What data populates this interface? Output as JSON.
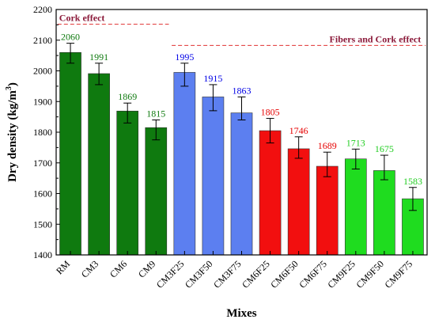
{
  "chart_data": {
    "type": "bar",
    "xlabel": "Mixes",
    "ylabel": "Dry density (kg/m",
    "ylabel_superscript": "3",
    "ylabel_close": ")",
    "ylim": [
      1400,
      2200
    ],
    "yticks": [
      1400,
      1500,
      1600,
      1700,
      1800,
      1900,
      2000,
      2100,
      2200
    ],
    "grid": false,
    "categories": [
      "RM",
      "CM3",
      "CM6",
      "CM9",
      "CM3F25",
      "CM3F50",
      "CM3F75",
      "CM6F25",
      "CM6F50",
      "CM6F75",
      "CM9F25",
      "CM9F50",
      "CM9F75"
    ],
    "values": [
      2060,
      1991,
      1869,
      1815,
      1995,
      1915,
      1863,
      1805,
      1746,
      1689,
      1713,
      1675,
      1583
    ],
    "error_low": [
      2025,
      1955,
      1830,
      1775,
      1950,
      1870,
      1840,
      1765,
      1715,
      1655,
      1680,
      1645,
      1545
    ],
    "error_high": [
      2090,
      2025,
      1895,
      1840,
      2025,
      1955,
      1915,
      1845,
      1785,
      1735,
      1745,
      1725,
      1620
    ],
    "bar_colors": [
      "#0f7a0f",
      "#0f7a0f",
      "#0f7a0f",
      "#0f7a0f",
      "#5c7ff0",
      "#5c7ff0",
      "#5c7ff0",
      "#f20f0f",
      "#f20f0f",
      "#f20f0f",
      "#1fdc1f",
      "#1fdc1f",
      "#1fdc1f"
    ],
    "label_colors": [
      "#0f7a0f",
      "#0f7a0f",
      "#0f7a0f",
      "#0f7a0f",
      "#0000e6",
      "#0000e6",
      "#0000e6",
      "#e60000",
      "#e60000",
      "#e60000",
      "#1fcc1f",
      "#1fcc1f",
      "#1fcc1f"
    ],
    "annotations": [
      {
        "text": "Cork effect",
        "y": 2152,
        "from": "RM",
        "to": "CM9",
        "text_anchor": "start"
      },
      {
        "text": "Fibers and Cork effect",
        "y": 2083,
        "from": "CM3F25",
        "to": "CM9F75",
        "text_anchor": "end"
      }
    ],
    "annotation_color": "#8b1a3a",
    "annotation_line_color": "#e03030"
  }
}
